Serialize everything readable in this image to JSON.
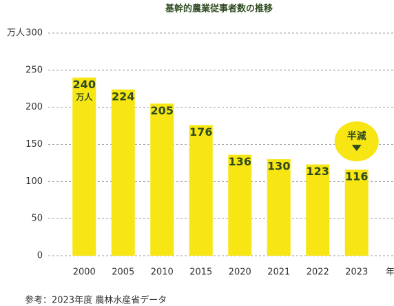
{
  "chart_data": {
    "type": "bar",
    "title": "基幹的農業従事者数の推移",
    "y_axis_label": "万人",
    "x_axis_label": "年",
    "categories": [
      "2000",
      "2005",
      "2010",
      "2015",
      "2020",
      "2021",
      "2022",
      "2023"
    ],
    "values": [
      240,
      224,
      205,
      176,
      136,
      130,
      123,
      116
    ],
    "color": "#f7e614",
    "label_color": "#2e4a1e",
    "ylim": [
      0,
      300
    ],
    "yticks": [
      0,
      50,
      100,
      150,
      200,
      250,
      300
    ],
    "grid": true,
    "annotation": "半減",
    "source": "参考：2023年度 農林水産省データ"
  }
}
